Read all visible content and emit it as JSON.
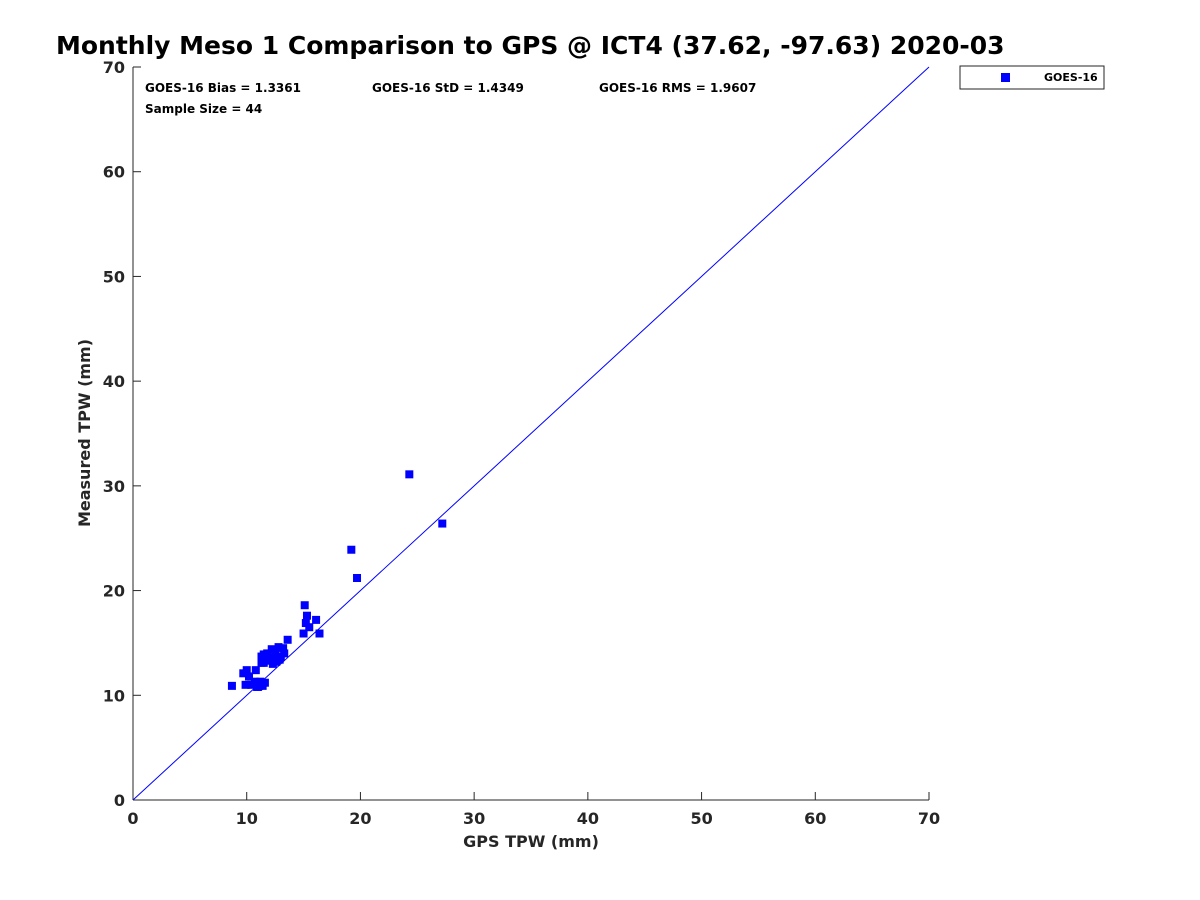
{
  "chart_data": {
    "type": "scatter",
    "title": "Monthly Meso 1 Comparison to GPS @ ICT4 (37.62, -97.63) 2020-03",
    "xlabel": "GPS TPW (mm)",
    "ylabel": "Measured TPW (mm)",
    "xlim": [
      0,
      70
    ],
    "ylim": [
      0,
      70
    ],
    "xticks": [
      0,
      10,
      20,
      30,
      40,
      50,
      60,
      70
    ],
    "yticks": [
      0,
      10,
      20,
      30,
      40,
      50,
      60,
      70
    ],
    "xtick_labels": [
      "0",
      "10",
      "20",
      "30",
      "40",
      "50",
      "60",
      "70"
    ],
    "ytick_labels": [
      "0",
      "10",
      "20",
      "30",
      "40",
      "50",
      "60",
      "70"
    ],
    "grid": false,
    "legend_position": "outside-top-right",
    "reference_line": {
      "from": [
        0,
        0
      ],
      "to": [
        70,
        70
      ],
      "color": "#0000ff"
    },
    "stats": {
      "bias": "GOES-16 Bias = 1.3361",
      "std": "GOES-16 StD = 1.4349",
      "rms": "GOES-16 RMS = 1.9607",
      "sample_size": "Sample Size = 44"
    },
    "series": [
      {
        "name": "GOES-16",
        "color": "#0000ff",
        "marker": "square",
        "points": [
          [
            8.7,
            10.9
          ],
          [
            9.7,
            12.1
          ],
          [
            9.9,
            11.0
          ],
          [
            10.0,
            12.4
          ],
          [
            10.2,
            11.8
          ],
          [
            10.4,
            11.0
          ],
          [
            10.7,
            11.3
          ],
          [
            10.8,
            12.4
          ],
          [
            10.9,
            10.8
          ],
          [
            11.0,
            11.2
          ],
          [
            11.1,
            10.9
          ],
          [
            11.2,
            11.3
          ],
          [
            11.3,
            13.7
          ],
          [
            11.3,
            13.1
          ],
          [
            11.4,
            10.9
          ],
          [
            11.5,
            13.9
          ],
          [
            11.6,
            11.2
          ],
          [
            11.7,
            13.4
          ],
          [
            11.8,
            14.0
          ],
          [
            11.9,
            13.3
          ],
          [
            12.1,
            13.6
          ],
          [
            12.2,
            14.4
          ],
          [
            12.3,
            13.0
          ],
          [
            12.5,
            13.9
          ],
          [
            12.6,
            13.2
          ],
          [
            12.8,
            14.6
          ],
          [
            12.9,
            13.4
          ],
          [
            13.0,
            13.7
          ],
          [
            13.2,
            14.5
          ],
          [
            13.3,
            14.0
          ],
          [
            13.6,
            15.3
          ],
          [
            15.0,
            15.9
          ],
          [
            15.1,
            18.6
          ],
          [
            15.2,
            16.9
          ],
          [
            15.3,
            17.6
          ],
          [
            15.5,
            16.5
          ],
          [
            16.1,
            17.2
          ],
          [
            16.4,
            15.9
          ],
          [
            19.2,
            23.9
          ],
          [
            19.7,
            21.2
          ],
          [
            24.3,
            31.1
          ],
          [
            27.2,
            26.4
          ],
          [
            11.0,
            10.8
          ],
          [
            11.5,
            13.1
          ]
        ]
      }
    ]
  },
  "legend": {
    "entries": [
      {
        "label": "GOES-16",
        "color": "#0000ff"
      }
    ]
  }
}
